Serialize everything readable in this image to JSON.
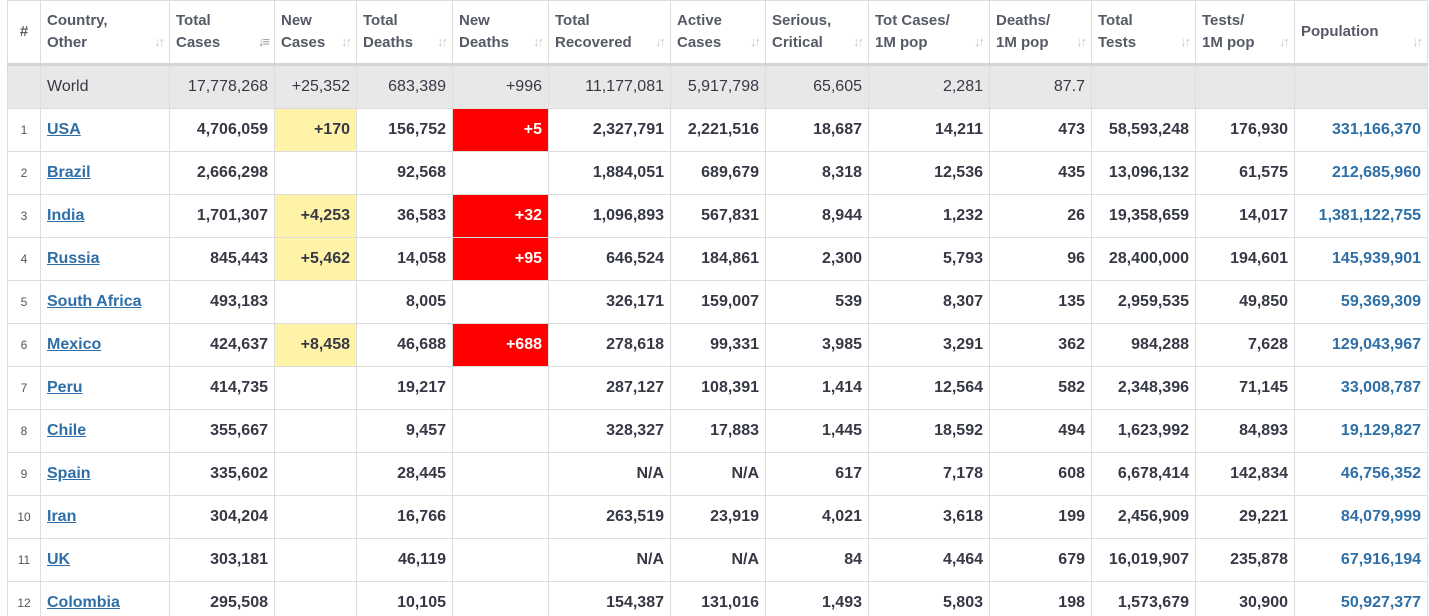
{
  "columns": [
    {
      "label": "#",
      "sort": false
    },
    {
      "label": "Country,\nOther",
      "sort": "plain"
    },
    {
      "label": "Total\nCases",
      "sort": "active"
    },
    {
      "label": "New\nCases",
      "sort": "plain"
    },
    {
      "label": "Total\nDeaths",
      "sort": "plain"
    },
    {
      "label": "New\nDeaths",
      "sort": "plain"
    },
    {
      "label": "Total\nRecovered",
      "sort": "plain"
    },
    {
      "label": "Active\nCases",
      "sort": "plain"
    },
    {
      "label": "Serious,\nCritical",
      "sort": "plain"
    },
    {
      "label": "Tot Cases/\n1M pop",
      "sort": "plain"
    },
    {
      "label": "Deaths/\n1M pop",
      "sort": "plain"
    },
    {
      "label": "Total\nTests",
      "sort": "plain"
    },
    {
      "label": "Tests/\n1M pop",
      "sort": "plain"
    },
    {
      "label": "Population",
      "sort": "plain"
    }
  ],
  "world": {
    "country": "World",
    "total_cases": "17,778,268",
    "new_cases": "+25,352",
    "total_deaths": "683,389",
    "new_deaths": "+996",
    "total_recovered": "11,177,081",
    "active_cases": "5,917,798",
    "serious_critical": "65,605",
    "tot_cases_1m": "2,281",
    "deaths_1m": "87.7",
    "total_tests": "",
    "tests_1m": "",
    "population": ""
  },
  "rows": [
    {
      "idx": "1",
      "country": "USA",
      "total_cases": "4,706,059",
      "new_cases": "+170",
      "total_deaths": "156,752",
      "new_deaths": "+5",
      "total_recovered": "2,327,791",
      "active_cases": "2,221,516",
      "serious_critical": "18,687",
      "tot_cases_1m": "14,211",
      "deaths_1m": "473",
      "total_tests": "58,593,248",
      "tests_1m": "176,930",
      "population": "331,166,370"
    },
    {
      "idx": "2",
      "country": "Brazil",
      "total_cases": "2,666,298",
      "new_cases": "",
      "total_deaths": "92,568",
      "new_deaths": "",
      "total_recovered": "1,884,051",
      "active_cases": "689,679",
      "serious_critical": "8,318",
      "tot_cases_1m": "12,536",
      "deaths_1m": "435",
      "total_tests": "13,096,132",
      "tests_1m": "61,575",
      "population": "212,685,960"
    },
    {
      "idx": "3",
      "country": "India",
      "total_cases": "1,701,307",
      "new_cases": "+4,253",
      "total_deaths": "36,583",
      "new_deaths": "+32",
      "total_recovered": "1,096,893",
      "active_cases": "567,831",
      "serious_critical": "8,944",
      "tot_cases_1m": "1,232",
      "deaths_1m": "26",
      "total_tests": "19,358,659",
      "tests_1m": "14,017",
      "population": "1,381,122,755"
    },
    {
      "idx": "4",
      "country": "Russia",
      "total_cases": "845,443",
      "new_cases": "+5,462",
      "total_deaths": "14,058",
      "new_deaths": "+95",
      "total_recovered": "646,524",
      "active_cases": "184,861",
      "serious_critical": "2,300",
      "tot_cases_1m": "5,793",
      "deaths_1m": "96",
      "total_tests": "28,400,000",
      "tests_1m": "194,601",
      "population": "145,939,901"
    },
    {
      "idx": "5",
      "country": "South Africa",
      "total_cases": "493,183",
      "new_cases": "",
      "total_deaths": "8,005",
      "new_deaths": "",
      "total_recovered": "326,171",
      "active_cases": "159,007",
      "serious_critical": "539",
      "tot_cases_1m": "8,307",
      "deaths_1m": "135",
      "total_tests": "2,959,535",
      "tests_1m": "49,850",
      "population": "59,369,309"
    },
    {
      "idx": "6",
      "country": "Mexico",
      "total_cases": "424,637",
      "new_cases": "+8,458",
      "total_deaths": "46,688",
      "new_deaths": "+688",
      "total_recovered": "278,618",
      "active_cases": "99,331",
      "serious_critical": "3,985",
      "tot_cases_1m": "3,291",
      "deaths_1m": "362",
      "total_tests": "984,288",
      "tests_1m": "7,628",
      "population": "129,043,967"
    },
    {
      "idx": "7",
      "country": "Peru",
      "total_cases": "414,735",
      "new_cases": "",
      "total_deaths": "19,217",
      "new_deaths": "",
      "total_recovered": "287,127",
      "active_cases": "108,391",
      "serious_critical": "1,414",
      "tot_cases_1m": "12,564",
      "deaths_1m": "582",
      "total_tests": "2,348,396",
      "tests_1m": "71,145",
      "population": "33,008,787"
    },
    {
      "idx": "8",
      "country": "Chile",
      "total_cases": "355,667",
      "new_cases": "",
      "total_deaths": "9,457",
      "new_deaths": "",
      "total_recovered": "328,327",
      "active_cases": "17,883",
      "serious_critical": "1,445",
      "tot_cases_1m": "18,592",
      "deaths_1m": "494",
      "total_tests": "1,623,992",
      "tests_1m": "84,893",
      "population": "19,129,827"
    },
    {
      "idx": "9",
      "country": "Spain",
      "total_cases": "335,602",
      "new_cases": "",
      "total_deaths": "28,445",
      "new_deaths": "",
      "total_recovered": "N/A",
      "active_cases": "N/A",
      "serious_critical": "617",
      "tot_cases_1m": "7,178",
      "deaths_1m": "608",
      "total_tests": "6,678,414",
      "tests_1m": "142,834",
      "population": "46,756,352"
    },
    {
      "idx": "10",
      "country": "Iran",
      "total_cases": "304,204",
      "new_cases": "",
      "total_deaths": "16,766",
      "new_deaths": "",
      "total_recovered": "263,519",
      "active_cases": "23,919",
      "serious_critical": "4,021",
      "tot_cases_1m": "3,618",
      "deaths_1m": "199",
      "total_tests": "2,456,909",
      "tests_1m": "29,221",
      "population": "84,079,999"
    },
    {
      "idx": "11",
      "country": "UK",
      "total_cases": "303,181",
      "new_cases": "",
      "total_deaths": "46,119",
      "new_deaths": "",
      "total_recovered": "N/A",
      "active_cases": "N/A",
      "serious_critical": "84",
      "tot_cases_1m": "4,464",
      "deaths_1m": "679",
      "total_tests": "16,019,907",
      "tests_1m": "235,878",
      "population": "67,916,194"
    },
    {
      "idx": "12",
      "country": "Colombia",
      "total_cases": "295,508",
      "new_cases": "",
      "total_deaths": "10,105",
      "new_deaths": "",
      "total_recovered": "154,387",
      "active_cases": "131,016",
      "serious_critical": "1,493",
      "tot_cases_1m": "5,803",
      "deaths_1m": "198",
      "total_tests": "1,573,679",
      "tests_1m": "30,900",
      "population": "50,927,377"
    }
  ],
  "colors": {
    "new_cases_highlight": "#fff3a8",
    "new_deaths_highlight": "#ff0000",
    "link": "#2e6fa7",
    "world_row_bg": "#e8e8e8"
  },
  "icons": {
    "sort": "sort-arrows-icon",
    "sort_active": "sort-desc-icon"
  }
}
